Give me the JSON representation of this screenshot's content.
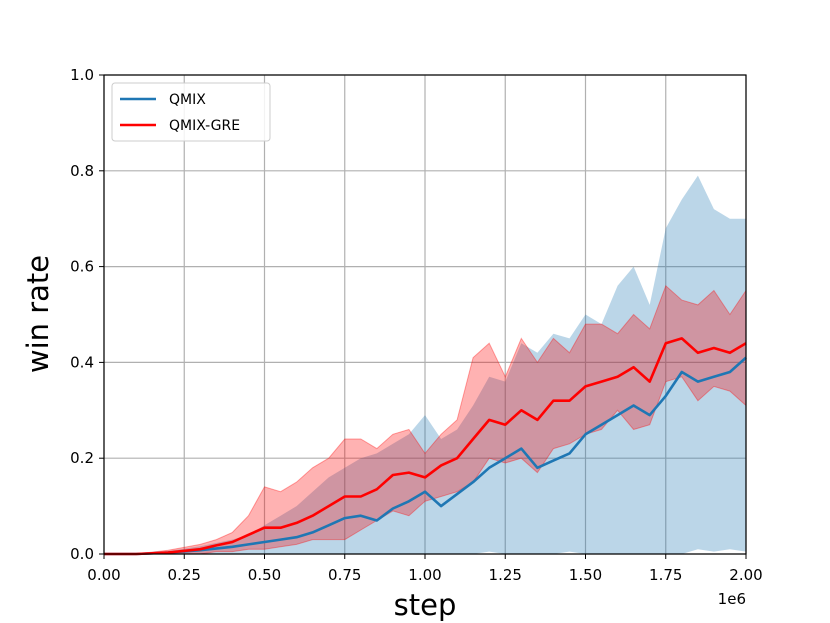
{
  "chart_data": {
    "type": "line",
    "title": "",
    "xlabel": "step",
    "ylabel": "win rate",
    "x_offset_label": "1e6",
    "xlim": [
      0,
      2.0
    ],
    "ylim": [
      0,
      1.0
    ],
    "grid": true,
    "legend_position": "top-left",
    "x_ticks": [
      "0.00",
      "0.25",
      "0.50",
      "0.75",
      "1.00",
      "1.25",
      "1.50",
      "1.75",
      "2.00"
    ],
    "y_ticks": [
      "0.0",
      "0.2",
      "0.4",
      "0.6",
      "0.8",
      "1.0"
    ],
    "series": [
      {
        "name": "QMIX",
        "color": "#1f77b4",
        "band_color": "#1f77b4",
        "band_opacity": 0.3,
        "x": [
          0.0,
          0.1,
          0.2,
          0.3,
          0.4,
          0.45,
          0.5,
          0.55,
          0.6,
          0.65,
          0.7,
          0.75,
          0.8,
          0.85,
          0.9,
          0.95,
          1.0,
          1.05,
          1.1,
          1.15,
          1.2,
          1.25,
          1.3,
          1.35,
          1.4,
          1.45,
          1.5,
          1.55,
          1.6,
          1.65,
          1.7,
          1.75,
          1.8,
          1.85,
          1.9,
          1.95,
          2.0
        ],
        "mean": [
          0.0,
          0.0,
          0.003,
          0.008,
          0.015,
          0.02,
          0.025,
          0.03,
          0.035,
          0.045,
          0.06,
          0.075,
          0.08,
          0.07,
          0.095,
          0.11,
          0.13,
          0.1,
          0.125,
          0.15,
          0.18,
          0.2,
          0.22,
          0.18,
          0.195,
          0.21,
          0.25,
          0.27,
          0.29,
          0.31,
          0.29,
          0.33,
          0.38,
          0.36,
          0.37,
          0.38,
          0.41
        ],
        "lower": [
          0.0,
          0.0,
          0.0,
          0.0,
          0.0,
          0.0,
          0.0,
          0.0,
          0.0,
          0.0,
          0.0,
          0.0,
          0.0,
          0.0,
          0.0,
          0.0,
          0.0,
          0.0,
          0.0,
          0.0,
          0.005,
          0.0,
          0.0,
          0.0,
          0.0,
          0.005,
          0.0,
          0.0,
          0.0,
          0.0,
          0.0,
          0.0,
          0.0,
          0.01,
          0.005,
          0.01,
          0.005
        ],
        "upper": [
          0.0,
          0.0,
          0.006,
          0.016,
          0.03,
          0.04,
          0.06,
          0.08,
          0.1,
          0.13,
          0.16,
          0.18,
          0.2,
          0.21,
          0.23,
          0.25,
          0.29,
          0.24,
          0.26,
          0.31,
          0.37,
          0.36,
          0.44,
          0.42,
          0.46,
          0.45,
          0.5,
          0.48,
          0.56,
          0.6,
          0.52,
          0.68,
          0.74,
          0.79,
          0.72,
          0.7,
          0.7
        ]
      },
      {
        "name": "QMIX-GRE",
        "color": "#ff0000",
        "band_color": "#ff0000",
        "band_opacity": 0.3,
        "x": [
          0.0,
          0.1,
          0.2,
          0.3,
          0.35,
          0.4,
          0.45,
          0.5,
          0.55,
          0.6,
          0.65,
          0.7,
          0.75,
          0.8,
          0.85,
          0.9,
          0.95,
          1.0,
          1.05,
          1.1,
          1.15,
          1.2,
          1.25,
          1.3,
          1.35,
          1.4,
          1.45,
          1.5,
          1.55,
          1.6,
          1.65,
          1.7,
          1.75,
          1.8,
          1.85,
          1.9,
          1.95,
          2.0
        ],
        "mean": [
          0.0,
          0.0,
          0.003,
          0.01,
          0.018,
          0.025,
          0.04,
          0.055,
          0.055,
          0.065,
          0.08,
          0.1,
          0.12,
          0.12,
          0.135,
          0.165,
          0.17,
          0.16,
          0.185,
          0.2,
          0.24,
          0.28,
          0.27,
          0.3,
          0.28,
          0.32,
          0.32,
          0.35,
          0.36,
          0.37,
          0.39,
          0.36,
          0.44,
          0.45,
          0.42,
          0.43,
          0.42,
          0.44
        ],
        "lower": [
          0.0,
          0.0,
          0.0,
          0.0,
          0.005,
          0.005,
          0.01,
          0.01,
          0.015,
          0.02,
          0.03,
          0.03,
          0.03,
          0.05,
          0.07,
          0.09,
          0.08,
          0.11,
          0.12,
          0.13,
          0.15,
          0.2,
          0.19,
          0.2,
          0.17,
          0.22,
          0.23,
          0.25,
          0.26,
          0.3,
          0.26,
          0.27,
          0.36,
          0.37,
          0.32,
          0.35,
          0.34,
          0.31
        ],
        "upper": [
          0.0,
          0.0,
          0.008,
          0.02,
          0.03,
          0.045,
          0.08,
          0.14,
          0.13,
          0.15,
          0.18,
          0.2,
          0.24,
          0.24,
          0.22,
          0.25,
          0.26,
          0.21,
          0.25,
          0.28,
          0.41,
          0.44,
          0.37,
          0.45,
          0.4,
          0.45,
          0.42,
          0.48,
          0.48,
          0.46,
          0.5,
          0.47,
          0.56,
          0.53,
          0.52,
          0.55,
          0.5,
          0.55
        ]
      }
    ]
  }
}
